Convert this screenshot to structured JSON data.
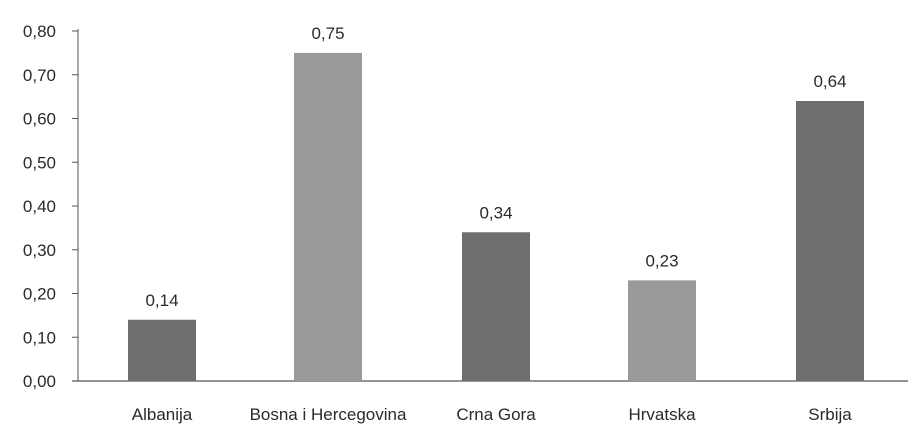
{
  "chart_data": {
    "type": "bar",
    "categories": [
      "Albanija",
      "Bosna i Hercegovina",
      "Crna Gora",
      "Hrvatska",
      "Srbija"
    ],
    "values": [
      0.14,
      0.75,
      0.34,
      0.23,
      0.64
    ],
    "value_labels": [
      "0,14",
      "0,75",
      "0,34",
      "0,23",
      "0,64"
    ],
    "yticks": [
      0,
      0.1,
      0.2,
      0.3,
      0.4,
      0.5,
      0.6,
      0.7,
      0.8
    ],
    "ytick_labels": [
      "0,00",
      "0,10",
      "0,20",
      "0,30",
      "0,40",
      "0,50",
      "0,60",
      "0,70",
      "0,80"
    ],
    "ylim": [
      0,
      0.8
    ],
    "title": "",
    "xlabel": "",
    "ylabel": "",
    "grid": false,
    "legend": false,
    "colors": {
      "bar_dark": "#6e6e6e",
      "bar_light": "#9a9a9a",
      "axis": "#555555"
    }
  }
}
